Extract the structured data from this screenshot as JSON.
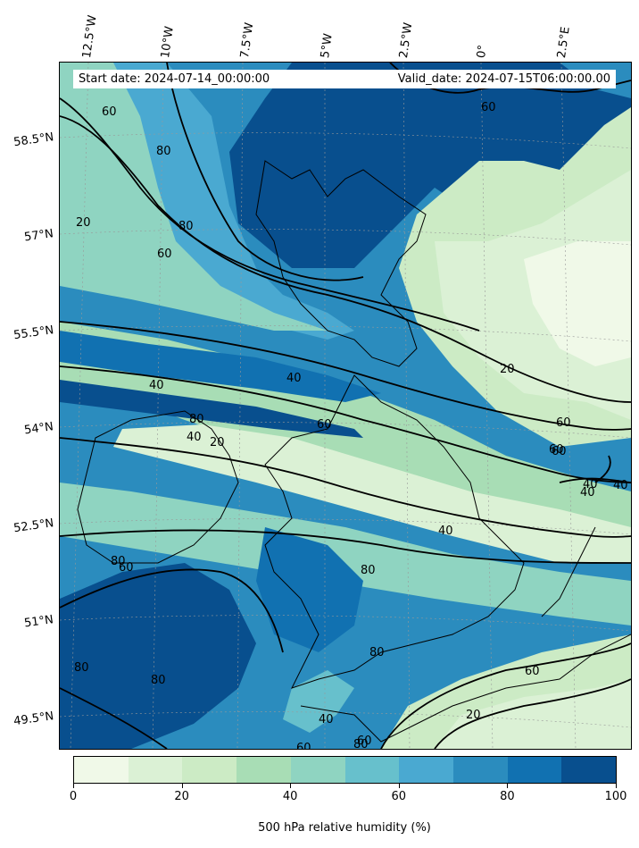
{
  "header": {
    "start_date": "Start date: 2024-07-14_00:00:00",
    "valid_date": "Valid_date: 2024-07-15T06:00:00.00"
  },
  "map": {
    "longitude_labels": [
      "12.5°W",
      "10°W",
      "7.5°W",
      "5°W",
      "2.5°W",
      "0°",
      "2.5°E"
    ],
    "latitude_labels": [
      "58.5°N",
      "57°N",
      "55.5°N",
      "54°N",
      "52.5°N",
      "51°N",
      "49.5°N"
    ],
    "contour_levels": [
      20,
      40,
      60,
      80
    ],
    "contour_labels": [
      "60",
      "80",
      "20",
      "80",
      "60",
      "60",
      "20",
      "40",
      "40",
      "40",
      "60",
      "80",
      "20",
      "60",
      "40",
      "60",
      "40",
      "40",
      "40",
      "60",
      "60",
      "80",
      "80",
      "80",
      "80",
      "60",
      "40",
      "60",
      "20",
      "60",
      "80",
      "80"
    ]
  },
  "colorbar": {
    "title": "500 hPa relative humidity (%)",
    "tick_labels": [
      "0",
      "20",
      "40",
      "60",
      "80",
      "100"
    ],
    "colors": [
      "#f0f9e8",
      "#dbf1d5",
      "#ccebc5",
      "#a8ddb5",
      "#8fd4c1",
      "#67c0cc",
      "#4aa9d1",
      "#2b8cbe",
      "#1171b1",
      "#084f8e"
    ]
  }
}
